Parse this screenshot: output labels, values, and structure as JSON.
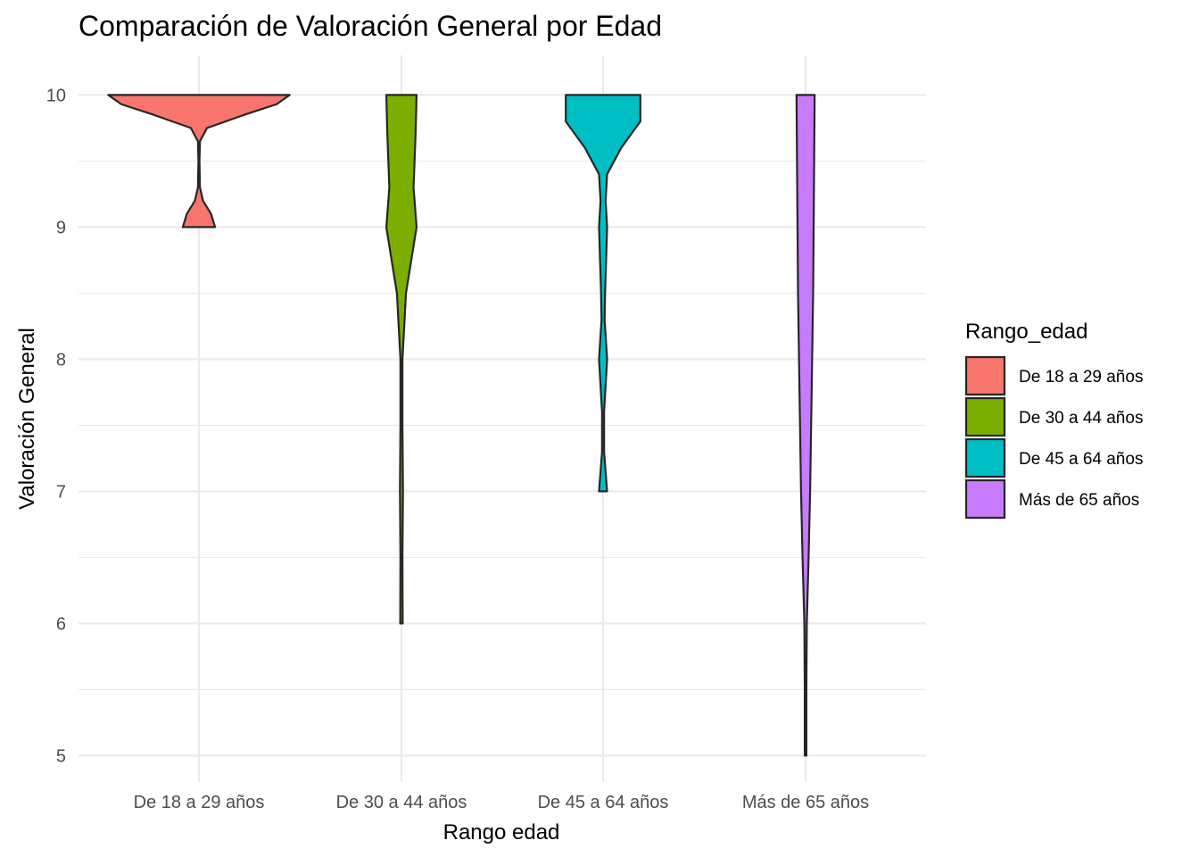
{
  "chart_data": {
    "type": "violin",
    "title": "Comparación de Valoración General por Edad",
    "xlabel": "Rango edad",
    "ylabel": "Valoración General",
    "ylim": [
      4.8,
      10.3
    ],
    "y_ticks": [
      5,
      6,
      7,
      8,
      9,
      10
    ],
    "categories": [
      "De 18 a 29 años",
      "De 30 a 44 años",
      "De 45 a 64 años",
      "Más de 65 años"
    ],
    "legend": {
      "title": "Rango_edad",
      "position": "right",
      "entries": [
        "De 18 a 29 años",
        "De 30 a 44 años",
        "De 45 a 64 años",
        "Más de 65 años"
      ]
    },
    "grid": true,
    "series": [
      {
        "category": "De 18 a 29 años",
        "color": "#F8766D",
        "profile": [
          [
            9,
            0.16
          ],
          [
            9.1,
            0.12
          ],
          [
            9.2,
            0.04
          ],
          [
            9.3,
            0.01
          ],
          [
            9.5,
            0.005
          ],
          [
            9.65,
            0.01
          ],
          [
            9.75,
            0.08
          ],
          [
            9.85,
            0.45
          ],
          [
            9.93,
            0.77
          ],
          [
            10,
            0.9
          ]
        ]
      },
      {
        "category": "De 30 a 44 años",
        "color": "#7CAE00",
        "profile": [
          [
            6,
            0.012
          ],
          [
            6.5,
            0.01
          ],
          [
            7,
            0.015
          ],
          [
            7.5,
            0.01
          ],
          [
            8,
            0.01
          ],
          [
            8.5,
            0.045
          ],
          [
            9,
            0.15
          ],
          [
            9.3,
            0.12
          ],
          [
            9.5,
            0.13
          ],
          [
            9.7,
            0.14
          ],
          [
            10,
            0.15
          ]
        ]
      },
      {
        "category": "De 45 a 64 años",
        "color": "#00BFC4",
        "profile": [
          [
            7,
            0.04
          ],
          [
            7.3,
            0.01
          ],
          [
            7.6,
            0.01
          ],
          [
            8,
            0.04
          ],
          [
            8.3,
            0.015
          ],
          [
            8.5,
            0.02
          ],
          [
            9,
            0.04
          ],
          [
            9.2,
            0.025
          ],
          [
            9.4,
            0.04
          ],
          [
            9.6,
            0.18
          ],
          [
            9.8,
            0.37
          ],
          [
            10,
            0.37
          ]
        ]
      },
      {
        "category": "Más de 65 años",
        "color": "#C77CFF",
        "profile": [
          [
            5,
            0.008
          ],
          [
            5.5,
            0.008
          ],
          [
            6,
            0.012
          ],
          [
            6.5,
            0.03
          ],
          [
            7,
            0.045
          ],
          [
            7.5,
            0.055
          ],
          [
            8,
            0.065
          ],
          [
            8.5,
            0.075
          ],
          [
            9,
            0.08
          ],
          [
            9.5,
            0.085
          ],
          [
            10,
            0.09
          ]
        ]
      }
    ]
  }
}
